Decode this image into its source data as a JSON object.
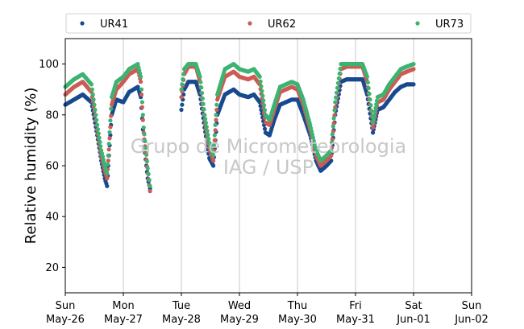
{
  "chart_data": {
    "type": "scatter",
    "ylabel": "Relative humidity (%)",
    "ylim": [
      10,
      110
    ],
    "yticks": [
      20,
      40,
      60,
      80,
      100
    ],
    "x_start": "2024-05-26",
    "x_end": "2024-06-02",
    "xlim_days": [
      0,
      7
    ],
    "xticks": [
      {
        "day": "Sun",
        "date": "May-26"
      },
      {
        "day": "Mon",
        "date": "May-27"
      },
      {
        "day": "Tue",
        "date": "May-28"
      },
      {
        "day": "Wed",
        "date": "May-29"
      },
      {
        "day": "Thu",
        "date": "May-30"
      },
      {
        "day": "Fri",
        "date": "May-31"
      },
      {
        "day": "Sat",
        "date": "Jun-01"
      },
      {
        "day": "Sun",
        "date": "Jun-02"
      }
    ],
    "grid": "vertical",
    "legend": "top",
    "watermark": [
      "Grupo de Micrometeorologia",
      "IAG / USP"
    ],
    "series": [
      {
        "name": "UR41",
        "color": "#174a8f",
        "points": [
          [
            0.0,
            84
          ],
          [
            0.15,
            86
          ],
          [
            0.3,
            88
          ],
          [
            0.45,
            85
          ],
          [
            0.55,
            72
          ],
          [
            0.62,
            62
          ],
          [
            0.68,
            55
          ],
          [
            0.72,
            52
          ],
          [
            0.74,
            60
          ],
          [
            0.8,
            80
          ],
          [
            0.88,
            86
          ],
          [
            1.0,
            85
          ],
          [
            1.1,
            89
          ],
          [
            1.25,
            91
          ],
          [
            1.3,
            87
          ],
          [
            1.35,
            70
          ],
          [
            1.42,
            55
          ],
          [
            1.46,
            51
          ],
          [
            2.0,
            82
          ],
          [
            2.05,
            90
          ],
          [
            2.12,
            93
          ],
          [
            2.25,
            93
          ],
          [
            2.32,
            88
          ],
          [
            2.4,
            75
          ],
          [
            2.48,
            63
          ],
          [
            2.55,
            60
          ],
          [
            2.62,
            80
          ],
          [
            2.75,
            88
          ],
          [
            2.9,
            90
          ],
          [
            3.0,
            88
          ],
          [
            3.15,
            87
          ],
          [
            3.25,
            88
          ],
          [
            3.35,
            85
          ],
          [
            3.45,
            73
          ],
          [
            3.52,
            72
          ],
          [
            3.6,
            78
          ],
          [
            3.7,
            84
          ],
          [
            3.8,
            85
          ],
          [
            3.9,
            86
          ],
          [
            4.0,
            86
          ],
          [
            4.1,
            80
          ],
          [
            4.22,
            72
          ],
          [
            4.32,
            62
          ],
          [
            4.4,
            58
          ],
          [
            4.5,
            60
          ],
          [
            4.58,
            62
          ],
          [
            4.65,
            80
          ],
          [
            4.75,
            93
          ],
          [
            4.85,
            94
          ],
          [
            5.0,
            94
          ],
          [
            5.12,
            94
          ],
          [
            5.2,
            88
          ],
          [
            5.3,
            73
          ],
          [
            5.38,
            82
          ],
          [
            5.48,
            83
          ],
          [
            5.58,
            86
          ],
          [
            5.68,
            89
          ],
          [
            5.78,
            91
          ],
          [
            5.88,
            92
          ],
          [
            6.0,
            92
          ]
        ]
      },
      {
        "name": "UR62",
        "color": "#cd5b54",
        "points": [
          [
            0.0,
            88
          ],
          [
            0.15,
            91
          ],
          [
            0.3,
            93
          ],
          [
            0.45,
            89
          ],
          [
            0.55,
            74
          ],
          [
            0.62,
            64
          ],
          [
            0.68,
            58
          ],
          [
            0.72,
            55
          ],
          [
            0.74,
            62
          ],
          [
            0.8,
            84
          ],
          [
            0.88,
            90
          ],
          [
            1.0,
            93
          ],
          [
            1.1,
            96
          ],
          [
            1.25,
            98
          ],
          [
            1.3,
            93
          ],
          [
            1.35,
            73
          ],
          [
            1.42,
            57
          ],
          [
            1.46,
            50
          ],
          [
            2.0,
            87
          ],
          [
            2.05,
            96
          ],
          [
            2.12,
            99
          ],
          [
            2.25,
            99
          ],
          [
            2.32,
            93
          ],
          [
            2.4,
            78
          ],
          [
            2.48,
            67
          ],
          [
            2.55,
            62
          ],
          [
            2.62,
            86
          ],
          [
            2.75,
            95
          ],
          [
            2.9,
            97
          ],
          [
            3.0,
            95
          ],
          [
            3.15,
            94
          ],
          [
            3.25,
            95
          ],
          [
            3.35,
            92
          ],
          [
            3.45,
            77
          ],
          [
            3.52,
            76
          ],
          [
            3.6,
            82
          ],
          [
            3.7,
            89
          ],
          [
            3.8,
            90
          ],
          [
            3.9,
            91
          ],
          [
            4.0,
            90
          ],
          [
            4.1,
            84
          ],
          [
            4.22,
            74
          ],
          [
            4.32,
            64
          ],
          [
            4.4,
            60
          ],
          [
            4.5,
            62
          ],
          [
            4.58,
            64
          ],
          [
            4.65,
            83
          ],
          [
            4.75,
            98
          ],
          [
            4.85,
            99
          ],
          [
            5.0,
            99
          ],
          [
            5.12,
            99
          ],
          [
            5.2,
            93
          ],
          [
            5.3,
            75
          ],
          [
            5.38,
            85
          ],
          [
            5.48,
            86
          ],
          [
            5.58,
            90
          ],
          [
            5.68,
            93
          ],
          [
            5.78,
            96
          ],
          [
            5.88,
            97
          ],
          [
            6.0,
            98
          ]
        ]
      },
      {
        "name": "UR73",
        "color": "#3cb371",
        "points": [
          [
            0.0,
            91
          ],
          [
            0.15,
            94
          ],
          [
            0.3,
            96
          ],
          [
            0.45,
            92
          ],
          [
            0.55,
            76
          ],
          [
            0.62,
            66
          ],
          [
            0.68,
            60
          ],
          [
            0.72,
            57
          ],
          [
            0.74,
            64
          ],
          [
            0.8,
            87
          ],
          [
            0.88,
            93
          ],
          [
            1.0,
            95
          ],
          [
            1.1,
            98
          ],
          [
            1.25,
            100
          ],
          [
            1.3,
            95
          ],
          [
            1.35,
            75
          ],
          [
            1.42,
            59
          ],
          [
            1.46,
            52
          ],
          [
            2.0,
            90
          ],
          [
            2.05,
            98
          ],
          [
            2.12,
            100
          ],
          [
            2.25,
            100
          ],
          [
            2.32,
            95
          ],
          [
            2.4,
            80
          ],
          [
            2.48,
            69
          ],
          [
            2.55,
            64
          ],
          [
            2.62,
            88
          ],
          [
            2.75,
            98
          ],
          [
            2.9,
            100
          ],
          [
            3.0,
            98
          ],
          [
            3.15,
            97
          ],
          [
            3.25,
            98
          ],
          [
            3.35,
            95
          ],
          [
            3.45,
            80
          ],
          [
            3.52,
            78
          ],
          [
            3.6,
            84
          ],
          [
            3.7,
            91
          ],
          [
            3.8,
            92
          ],
          [
            3.9,
            93
          ],
          [
            4.0,
            92
          ],
          [
            4.1,
            86
          ],
          [
            4.22,
            76
          ],
          [
            4.32,
            66
          ],
          [
            4.4,
            62
          ],
          [
            4.5,
            64
          ],
          [
            4.58,
            66
          ],
          [
            4.65,
            85
          ],
          [
            4.75,
            100
          ],
          [
            4.85,
            100
          ],
          [
            5.0,
            100
          ],
          [
            5.12,
            100
          ],
          [
            5.2,
            95
          ],
          [
            5.3,
            77
          ],
          [
            5.38,
            87
          ],
          [
            5.48,
            88
          ],
          [
            5.58,
            92
          ],
          [
            5.68,
            95
          ],
          [
            5.78,
            98
          ],
          [
            5.88,
            99
          ],
          [
            6.0,
            100
          ]
        ]
      }
    ]
  }
}
